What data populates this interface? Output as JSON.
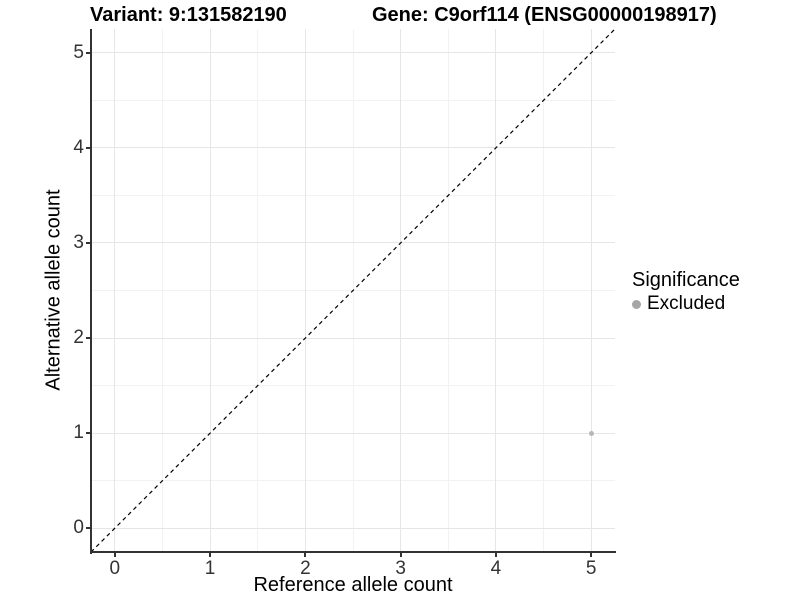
{
  "chart_data": {
    "type": "scatter",
    "title_left": "Variant: 9:131582190",
    "title_right": "Gene: C9orf114 (ENSG00000198917)",
    "xlabel": "Reference allele count",
    "ylabel": "Alternative allele count",
    "xlim": [
      -0.25,
      5.25
    ],
    "ylim": [
      -0.25,
      5.25
    ],
    "xticks": [
      0,
      1,
      2,
      3,
      4,
      5
    ],
    "yticks": [
      0,
      1,
      2,
      3,
      4,
      5
    ],
    "minor_xticks": [
      0.5,
      1.5,
      2.5,
      3.5,
      4.5
    ],
    "minor_yticks": [
      0.5,
      1.5,
      2.5,
      3.5,
      4.5
    ],
    "grid": true,
    "points": [
      {
        "x": 5,
        "y": 1,
        "significance": "Excluded"
      }
    ],
    "identity_line": {
      "slope": 1,
      "intercept": 0,
      "style": "dashed"
    },
    "legend": {
      "title": "Significance",
      "position": "right",
      "items": [
        {
          "label": "Excluded",
          "color": "#a6a6a6"
        }
      ]
    },
    "colors": {
      "point": "#b7b7b7",
      "grid_major": "#e6e6e6",
      "grid_minor": "#f2f2f2",
      "axis": "#333333",
      "identity_line": "#000000"
    }
  }
}
